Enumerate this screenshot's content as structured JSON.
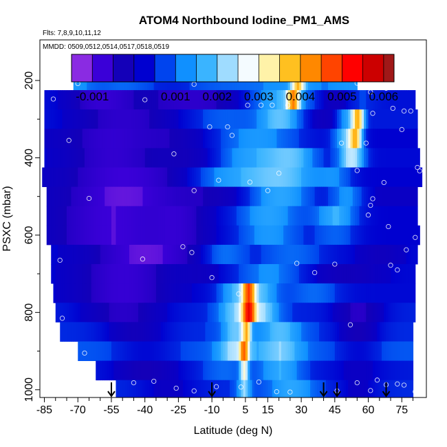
{
  "chart_data": {
    "type": "heatmap",
    "title": "ATOM4 Northbound Iodine_PM1_AMS",
    "flights_note": "Flts: 7,8,9,10,11,12",
    "dates_note": "MMDD: 0509,0512,0514,0517,0518,0519",
    "xlabel": "Latitude (deg N)",
    "ylabel": "PSXC (mbar)",
    "xlim": [
      -87,
      86
    ],
    "ylim": [
      1020,
      95
    ],
    "x_ticks": [
      -85,
      -70,
      -55,
      -40,
      -25,
      -10,
      5,
      15,
      30,
      45,
      60,
      75
    ],
    "x_ticks_minor": [
      -80,
      -75,
      -65,
      -60,
      -50,
      -45,
      -35,
      -30,
      -20,
      -15,
      -5,
      0,
      10,
      20,
      25,
      35,
      40,
      50,
      55,
      65,
      70,
      80
    ],
    "y_ticks": [
      200,
      400,
      600,
      800,
      1000
    ],
    "y_ticks_minor": [
      300,
      500,
      700,
      900
    ],
    "colorbar": {
      "min": -0.0015,
      "max": 0.00625,
      "tick_labels": [
        "-0.001",
        "0.001",
        "0.002",
        "0.003",
        "0.004",
        "0.005",
        "0.006"
      ],
      "tick_values": [
        -0.001,
        0.001,
        0.002,
        0.003,
        0.004,
        0.005,
        0.006
      ],
      "boundaries": [
        -0.0015,
        -0.001,
        -0.0005,
        0,
        0.0005,
        0.001,
        0.0015,
        0.002,
        0.0025,
        0.003,
        0.0035,
        0.004,
        0.0045,
        0.005,
        0.0055,
        0.006,
        0.00625
      ],
      "colors": [
        "#8a2be2",
        "#3a00d8",
        "#1400b8",
        "#0000d0",
        "#0044ee",
        "#1090ff",
        "#3ab4ff",
        "#9fdcff",
        "#f4fbff",
        "#fff2a8",
        "#ffc020",
        "#ff8800",
        "#ff4400",
        "#ff0000",
        "#cc0000",
        "#a01818"
      ]
    },
    "layers": [
      {
        "p": 200,
        "x0": -72,
        "x1": 55,
        "base": 0.0012,
        "bumps": [
          [
            -60,
            8,
            -0.0004
          ],
          [
            -30,
            18,
            -0.0008
          ],
          [
            0,
            20,
            -0.0003
          ],
          [
            28,
            3,
            0.0026
          ],
          [
            40,
            8,
            -0.0002
          ]
        ]
      },
      {
        "p": 250,
        "x0": -85,
        "x1": 81,
        "base": 0.0002,
        "bumps": [
          [
            -60,
            15,
            -0.001
          ],
          [
            -20,
            25,
            -0.0009
          ],
          [
            20,
            14,
            0.0014
          ],
          [
            26,
            3,
            0.0028
          ],
          [
            45,
            8,
            -0.0006
          ],
          [
            55,
            8,
            0.0004
          ]
        ]
      },
      {
        "p": 300,
        "x0": -85,
        "x1": 82,
        "base": 0.0003,
        "bumps": [
          [
            -50,
            25,
            -0.001
          ],
          [
            -5,
            15,
            0.0005
          ],
          [
            20,
            10,
            0.0015
          ],
          [
            40,
            10,
            -0.0006
          ],
          [
            50,
            5,
            0.0012
          ],
          [
            55,
            3,
            0.003
          ]
        ]
      },
      {
        "p": 350,
        "x0": -85,
        "x1": 82,
        "base": 0.0,
        "bumps": [
          [
            -55,
            20,
            -0.0008
          ],
          [
            -25,
            15,
            -0.0004
          ],
          [
            10,
            20,
            0.0012
          ],
          [
            50,
            6,
            0.0018
          ],
          [
            54,
            3,
            0.0025
          ]
        ]
      },
      {
        "p": 400,
        "x0": -85,
        "x1": 83,
        "base": 0.0001,
        "bumps": [
          [
            -55,
            20,
            -0.0009
          ],
          [
            -20,
            15,
            -0.0005
          ],
          [
            5,
            15,
            0.0012
          ],
          [
            25,
            12,
            0.0016
          ],
          [
            52,
            6,
            0.0022
          ]
        ]
      },
      {
        "p": 450,
        "x0": -86,
        "x1": 84,
        "base": 0.0,
        "bumps": [
          [
            -50,
            25,
            -0.001
          ],
          [
            -5,
            15,
            0.001
          ],
          [
            20,
            18,
            0.0019
          ],
          [
            45,
            8,
            0.0008
          ]
        ]
      },
      {
        "p": 500,
        "x0": -84,
        "x1": 82,
        "base": -0.0001,
        "bumps": [
          [
            -50,
            25,
            -0.001
          ],
          [
            -10,
            15,
            -0.0003
          ],
          [
            20,
            15,
            0.0016
          ],
          [
            50,
            8,
            0.0012
          ]
        ]
      },
      {
        "p": 550,
        "x0": -84,
        "x1": 82,
        "base": 0.0,
        "bumps": [
          [
            -55,
            25,
            -0.001
          ],
          [
            -25,
            12,
            -0.0006
          ],
          [
            15,
            15,
            0.0014
          ],
          [
            45,
            10,
            0.0015
          ]
        ]
      },
      {
        "p": 600,
        "x0": -84,
        "x1": 83,
        "base": 0.0,
        "bumps": [
          [
            -55,
            25,
            -0.001
          ],
          [
            -25,
            12,
            -0.0006
          ],
          [
            15,
            15,
            0.0012
          ],
          [
            45,
            10,
            0.0008
          ]
        ]
      },
      {
        "p": 650,
        "x0": -82,
        "x1": 82,
        "base": 0.0001,
        "bumps": [
          [
            -40,
            25,
            -0.0012
          ],
          [
            -5,
            10,
            0.001
          ],
          [
            25,
            15,
            0.0008
          ],
          [
            65,
            10,
            -0.0004
          ]
        ]
      },
      {
        "p": 700,
        "x0": -82,
        "x1": 81,
        "base": 0.0001,
        "bumps": [
          [
            -50,
            20,
            -0.001
          ],
          [
            -15,
            10,
            -0.0003
          ],
          [
            15,
            15,
            0.001
          ],
          [
            50,
            15,
            -0.0005
          ]
        ]
      },
      {
        "p": 750,
        "x0": -81,
        "x1": 81,
        "base": 0.0001,
        "bumps": [
          [
            -50,
            20,
            -0.001
          ],
          [
            0,
            8,
            0.0014
          ],
          [
            6,
            3,
            0.003
          ],
          [
            12,
            8,
            0.0014
          ],
          [
            35,
            12,
            0.0008
          ]
        ]
      },
      {
        "p": 800,
        "x0": -80,
        "x1": 81,
        "base": 0.0004,
        "bumps": [
          [
            -50,
            20,
            -0.001
          ],
          [
            0,
            8,
            0.0014
          ],
          [
            6,
            3,
            0.0032
          ],
          [
            12,
            8,
            0.0016
          ],
          [
            55,
            12,
            -0.001
          ]
        ]
      },
      {
        "p": 850,
        "x0": -78,
        "x1": 80,
        "base": 0.0005,
        "bumps": [
          [
            -45,
            15,
            -0.0009
          ],
          [
            0,
            6,
            0.0014
          ],
          [
            5,
            2,
            0.0025
          ],
          [
            20,
            10,
            0.0012
          ],
          [
            55,
            10,
            -0.001
          ]
        ]
      },
      {
        "p": 900,
        "x0": -70,
        "x1": 80,
        "base": 0.0007,
        "bumps": [
          [
            -40,
            15,
            -0.0006
          ],
          [
            0,
            8,
            0.0015
          ],
          [
            4,
            2,
            0.0025
          ],
          [
            20,
            10,
            0.0013
          ],
          [
            55,
            10,
            -0.0006
          ]
        ]
      },
      {
        "p": 950,
        "x0": -62,
        "x1": 80,
        "base": 0.0003,
        "bumps": [
          [
            -40,
            15,
            -0.0008
          ],
          [
            -5,
            10,
            0.0006
          ],
          [
            4,
            2,
            0.0022
          ],
          [
            20,
            10,
            0.0012
          ],
          [
            55,
            12,
            -0.0004
          ]
        ]
      },
      {
        "p": 1000,
        "x0": -53,
        "x1": 80,
        "base": 0.0005,
        "bumps": [
          [
            -30,
            15,
            -0.0006
          ],
          [
            4,
            3,
            0.0015
          ],
          [
            25,
            10,
            0.001
          ],
          [
            55,
            10,
            -0.0006
          ]
        ]
      }
    ],
    "points": [
      [
        -84,
        215
      ],
      [
        -70,
        208
      ],
      [
        -81,
        248
      ],
      [
        -40,
        250
      ],
      [
        -74,
        355
      ],
      [
        -18,
        210
      ],
      [
        -27,
        390
      ],
      [
        -65,
        505
      ],
      [
        -86,
        620
      ],
      [
        -23,
        630
      ],
      [
        -11,
        320
      ],
      [
        -1,
        342
      ],
      [
        -3,
        320
      ],
      [
        6,
        264
      ],
      [
        12,
        264
      ],
      [
        17,
        264
      ],
      [
        24,
        264
      ],
      [
        -18,
        485
      ],
      [
        -7,
        458
      ],
      [
        7,
        463
      ],
      [
        15,
        485
      ],
      [
        20,
        440
      ],
      [
        -41,
        662
      ],
      [
        -19,
        645
      ],
      [
        -78,
        665
      ],
      [
        -77,
        815
      ],
      [
        -10,
        710
      ],
      [
        2,
        752
      ],
      [
        28,
        673
      ],
      [
        36,
        697
      ],
      [
        45,
        675
      ],
      [
        55,
        207
      ],
      [
        61,
        230
      ],
      [
        68,
        220
      ],
      [
        71,
        272
      ],
      [
        76,
        279
      ],
      [
        79,
        279
      ],
      [
        48,
        362
      ],
      [
        62,
        285
      ],
      [
        59,
        362
      ],
      [
        75,
        327
      ],
      [
        83,
        434
      ],
      [
        55,
        433
      ],
      [
        62,
        506
      ],
      [
        67,
        464
      ],
      [
        60,
        548
      ],
      [
        77,
        638
      ],
      [
        81,
        606
      ],
      [
        61,
        523
      ],
      [
        82,
        425
      ],
      [
        69,
        578
      ],
      [
        70,
        678
      ],
      [
        73,
        690
      ],
      [
        52,
        832
      ],
      [
        -67,
        905
      ],
      [
        -64,
        957
      ],
      [
        -55,
        1000
      ],
      [
        -45,
        982
      ],
      [
        -36,
        978
      ],
      [
        -26,
        996
      ],
      [
        -18,
        1003
      ],
      [
        -8,
        992
      ],
      [
        3,
        993
      ],
      [
        11,
        980
      ],
      [
        19,
        1005
      ],
      [
        25,
        1006
      ],
      [
        46,
        1003
      ],
      [
        55,
        982
      ],
      [
        61,
        1002
      ],
      [
        68,
        987
      ],
      [
        73,
        985
      ],
      [
        76,
        988
      ],
      [
        81,
        1005
      ],
      [
        64,
        975
      ]
    ],
    "arrows_lat": [
      -55,
      -10,
      40,
      46,
      68
    ]
  }
}
